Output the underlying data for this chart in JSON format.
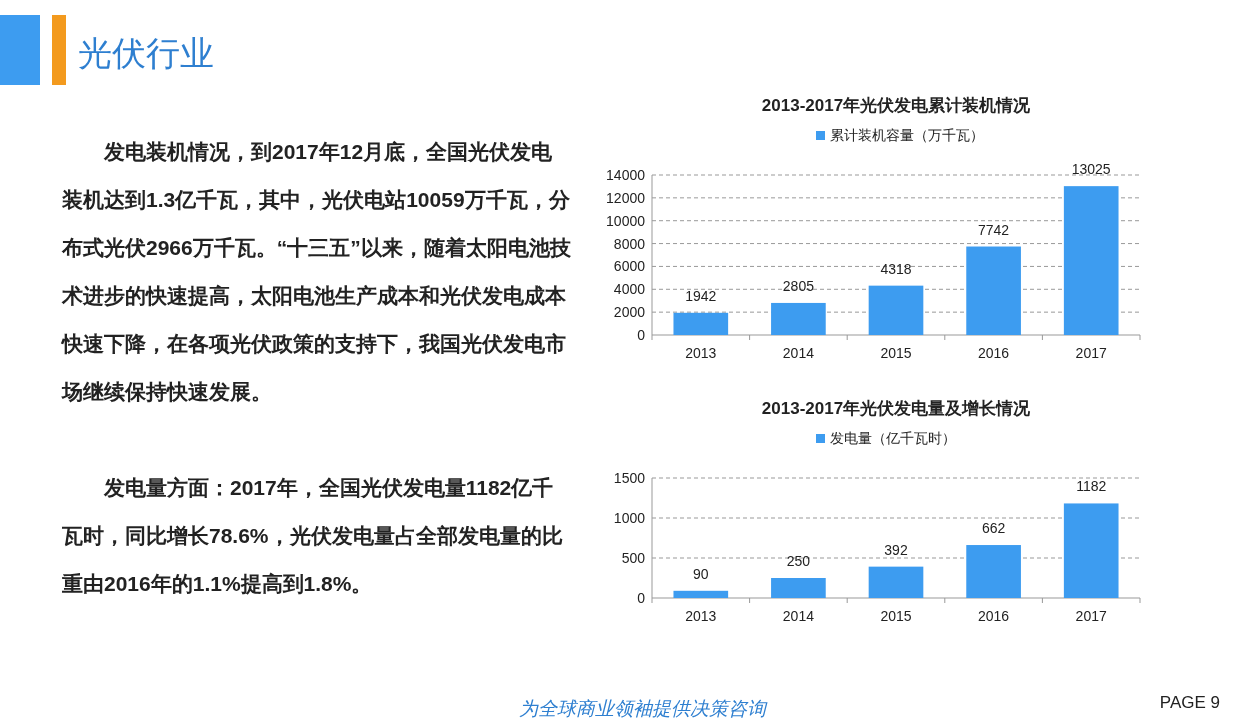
{
  "chart_data": [
    {
      "type": "other",
      "title": "光伏行业",
      "annotations": [
        "发电装机情况，到2017年12月底，全国光伏发电装机达到1.3亿千瓦，其中，光伏电站10059万千瓦，分布式光伏2966万千瓦。“十三五”以来，随着太阳电池技术进步的快速提高，太阳电池生产成本和光伏发电成本快速下降，在各项光伏政策的支持下，我国光伏发电市场继续保持快速发展。",
        "发电量方面：2017年，全国光伏发电量1182亿千瓦时，同比增长78.6%，光伏发电量占全部发电量的比重由2016年的1.1%提高到1.8%。",
        "为全球商业领袖提供决策咨询",
        "PAGE  9"
      ]
    },
    {
      "type": "bar",
      "title": "2013-2017年光伏发电累计装机情况",
      "categories": [
        "2013",
        "2014",
        "2015",
        "2016",
        "2017"
      ],
      "series": [
        {
          "name": "累计装机容量（万千瓦）",
          "color": "#3d9cf0",
          "values": [
            1942,
            2805,
            4318,
            7742,
            13025
          ]
        }
      ],
      "ylim": [
        0,
        14000
      ],
      "yticks": [
        0,
        2000,
        4000,
        6000,
        8000,
        10000,
        12000,
        14000
      ],
      "grid": "y",
      "legend": "top",
      "data_labels": true
    },
    {
      "type": "bar",
      "title": "2013-2017年光伏发电量及增长情况",
      "categories": [
        "2013",
        "2014",
        "2015",
        "2016",
        "2017"
      ],
      "series": [
        {
          "name": "发电量（亿千瓦时）",
          "color": "#3d9cf0",
          "values": [
            90,
            250,
            392,
            662,
            1182
          ]
        }
      ],
      "ylim": [
        0,
        1500
      ],
      "yticks": [
        0,
        500,
        1000,
        1500
      ],
      "grid": "y",
      "legend": "top",
      "data_labels": true
    }
  ]
}
